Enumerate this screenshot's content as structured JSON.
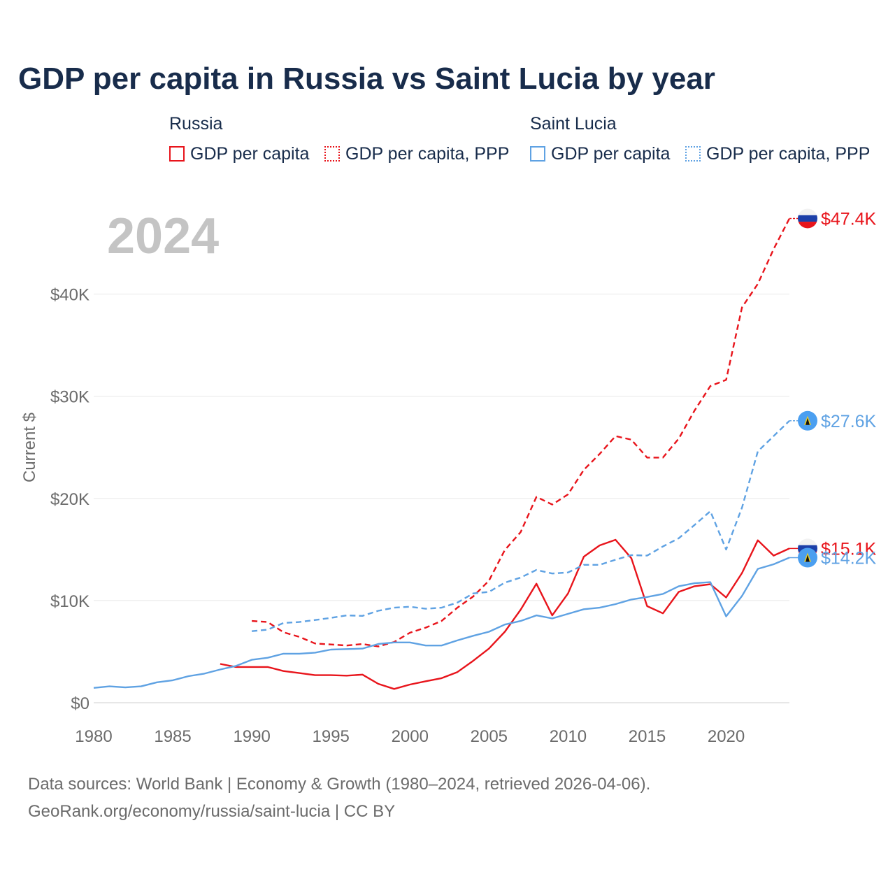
{
  "title": "GDP per capita in Russia vs Saint Lucia by year",
  "legend": {
    "groups": [
      {
        "name": "Russia",
        "items": [
          "GDP per capita",
          "GDP per capita, PPP"
        ]
      },
      {
        "name": "Saint Lucia",
        "items": [
          "GDP per capita",
          "GDP per capita, PPP"
        ]
      }
    ]
  },
  "colors": {
    "russia": "#e8141b",
    "saint_lucia": "#5fa2e3",
    "year_label": "#c4c4c4",
    "grid": "#e6e6e6"
  },
  "footer": {
    "line1": "Data sources: World Bank | Economy & Growth (1980–2024, retrieved 2026-04-06).",
    "line2": "GeoRank.org/economy/russia/saint-lucia | CC BY"
  },
  "chart_data": {
    "type": "line",
    "year_label": "2024",
    "ylabel": "Current $",
    "xlim": [
      1980,
      2024
    ],
    "ylim": [
      0,
      50000
    ],
    "x_ticks": [
      1980,
      1985,
      1990,
      1995,
      2000,
      2005,
      2010,
      2015,
      2020
    ],
    "x_tick_labels": [
      "1980",
      "1985",
      "1990",
      "1995",
      "2000",
      "2005",
      "2010",
      "2015",
      "2020"
    ],
    "y_ticks": [
      0,
      10000,
      20000,
      30000,
      40000
    ],
    "y_tick_labels": [
      "$0",
      "$10K",
      "$20K",
      "$30K",
      "$40K"
    ],
    "series": [
      {
        "name": "Russia GDP per capita",
        "country": "russia",
        "dashed": false,
        "end_label": "$15.1K",
        "x": [
          1988,
          1989,
          1990,
          1991,
          1992,
          1993,
          1994,
          1995,
          1996,
          1997,
          1998,
          1999,
          2000,
          2001,
          2002,
          2003,
          2004,
          2005,
          2006,
          2007,
          2008,
          2009,
          2010,
          2011,
          2012,
          2013,
          2014,
          2015,
          2016,
          2017,
          2018,
          2019,
          2020,
          2021,
          2022,
          2023,
          2024
        ],
        "values": [
          3800,
          3500,
          3500,
          3500,
          3100,
          2900,
          2700,
          2700,
          2650,
          2750,
          1850,
          1350,
          1780,
          2100,
          2400,
          3000,
          4100,
          5300,
          6950,
          9100,
          11650,
          8550,
          10700,
          14300,
          15400,
          15950,
          14150,
          9450,
          8750,
          10850,
          11400,
          11600,
          10300,
          12700,
          15900,
          14400,
          15100
        ]
      },
      {
        "name": "Russia GDP per capita, PPP",
        "country": "russia",
        "dashed": true,
        "end_label": "$47.4K",
        "x": [
          1990,
          1991,
          1992,
          1993,
          1994,
          1995,
          1996,
          1997,
          1998,
          1999,
          2000,
          2001,
          2002,
          2003,
          2004,
          2005,
          2006,
          2007,
          2008,
          2009,
          2010,
          2011,
          2012,
          2013,
          2014,
          2015,
          2016,
          2017,
          2018,
          2019,
          2020,
          2021,
          2022,
          2023,
          2024
        ],
        "values": [
          8000,
          7900,
          6900,
          6450,
          5800,
          5700,
          5600,
          5750,
          5500,
          5950,
          6850,
          7350,
          8000,
          9300,
          10400,
          11950,
          14950,
          16700,
          20150,
          19400,
          20400,
          22800,
          24350,
          26100,
          25750,
          24000,
          24000,
          25850,
          28600,
          31000,
          31600,
          38700,
          41000,
          44400,
          47400
        ]
      },
      {
        "name": "Saint Lucia GDP per capita",
        "country": "saint_lucia",
        "dashed": false,
        "end_label": "$14.2K",
        "x": [
          1980,
          1981,
          1982,
          1983,
          1984,
          1985,
          1986,
          1987,
          1988,
          1989,
          1990,
          1991,
          1992,
          1993,
          1994,
          1995,
          1996,
          1997,
          1998,
          1999,
          2000,
          2001,
          2002,
          2003,
          2004,
          2005,
          2006,
          2007,
          2008,
          2009,
          2010,
          2011,
          2012,
          2013,
          2014,
          2015,
          2016,
          2017,
          2018,
          2019,
          2020,
          2021,
          2022,
          2023,
          2024
        ],
        "values": [
          1450,
          1600,
          1500,
          1600,
          2000,
          2200,
          2600,
          2850,
          3250,
          3600,
          4200,
          4400,
          4800,
          4800,
          4900,
          5200,
          5250,
          5300,
          5750,
          5900,
          5900,
          5600,
          5600,
          6100,
          6550,
          6950,
          7650,
          8000,
          8550,
          8250,
          8700,
          9150,
          9300,
          9650,
          10100,
          10350,
          10650,
          11400,
          11700,
          11800,
          8450,
          10450,
          13100,
          13550,
          14200
        ]
      },
      {
        "name": "Saint Lucia GDP per capita, PPP",
        "country": "saint_lucia",
        "dashed": true,
        "end_label": "$27.6K",
        "x": [
          1990,
          1991,
          1992,
          1993,
          1994,
          1995,
          1996,
          1997,
          1998,
          1999,
          2000,
          2001,
          2002,
          2003,
          2004,
          2005,
          2006,
          2007,
          2008,
          2009,
          2010,
          2011,
          2012,
          2013,
          2014,
          2015,
          2016,
          2017,
          2018,
          2019,
          2020,
          2021,
          2022,
          2023,
          2024
        ],
        "values": [
          7000,
          7150,
          7800,
          7900,
          8100,
          8300,
          8550,
          8500,
          9000,
          9300,
          9400,
          9200,
          9300,
          9800,
          10700,
          10850,
          11750,
          12250,
          13000,
          12650,
          12750,
          13500,
          13500,
          14000,
          14450,
          14400,
          15300,
          16100,
          17400,
          18750,
          15000,
          19100,
          24600,
          26100,
          27600
        ]
      }
    ]
  }
}
